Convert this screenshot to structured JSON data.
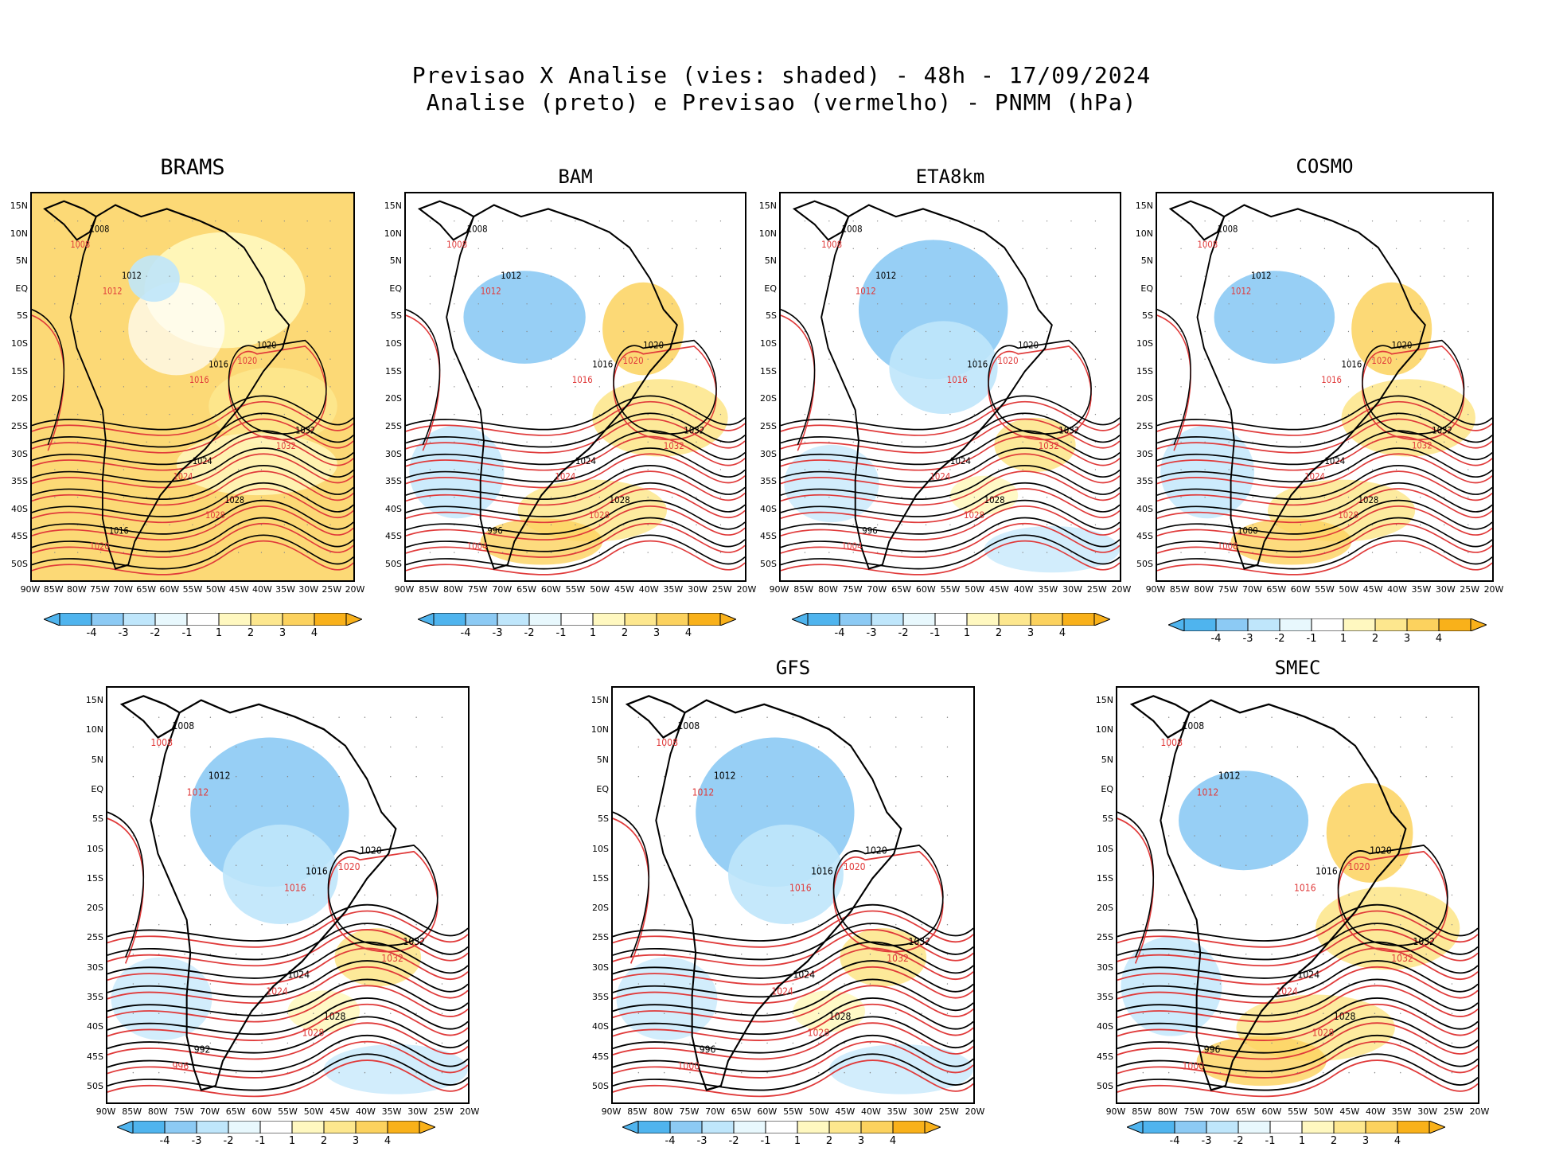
{
  "title_line1": "Previsao X Analise (vies: shaded) - 48h - 17/09/2024",
  "title_line2": "Analise (preto) e Previsao (vermelho) - PNMM (hPa)",
  "colors": {
    "neg4": "#4fb4ee",
    "neg3": "#8ccaf4",
    "neg2": "#bfe6fb",
    "neg1": "#e8f8fd",
    "pos1": "#fff8c0",
    "pos2": "#fde78e",
    "pos3": "#fcd25e",
    "pos4": "#f9b11a",
    "analysis": "#000000",
    "forecast": "#e03a3a",
    "coast": "#000000"
  },
  "lat_labels": [
    "15N",
    "10N",
    "5N",
    "EQ",
    "5S",
    "10S",
    "15S",
    "20S",
    "25S",
    "30S",
    "35S",
    "40S",
    "45S",
    "50S"
  ],
  "lon_labels": [
    "90W",
    "85W",
    "80W",
    "75W",
    "70W",
    "65W",
    "60W",
    "55W",
    "50W",
    "45W",
    "40W",
    "35W",
    "30W",
    "25W",
    "20W"
  ],
  "colorbar_labels": [
    "-4",
    "-3",
    "-2",
    "-1",
    "1",
    "2",
    "3",
    "4"
  ],
  "panels": [
    {
      "name": "BRAMS",
      "bias": "warm",
      "contour_labels": {
        "black": [
          "1008",
          "1012",
          "1016",
          "1020",
          "1024",
          "1028",
          "1032",
          "1016"
        ],
        "red": [
          "1008",
          "1012",
          "1016",
          "1020",
          "1024",
          "1028",
          "1032",
          "1020"
        ]
      }
    },
    {
      "name": "BAM",
      "bias": "mixed",
      "contour_labels": {
        "black": [
          "1008",
          "1012",
          "1016",
          "1020",
          "1024",
          "1028",
          "1032",
          "996"
        ],
        "red": [
          "1008",
          "1012",
          "1016",
          "1020",
          "1024",
          "1028",
          "1032",
          "1004"
        ]
      }
    },
    {
      "name": "ETA8km",
      "bias": "cold",
      "contour_labels": {
        "black": [
          "1008",
          "1012",
          "1016",
          "1020",
          "1024",
          "1028",
          "1032",
          "996"
        ],
        "red": [
          "1008",
          "1012",
          "1016",
          "1020",
          "1024",
          "1028",
          "1032",
          "1004"
        ]
      }
    },
    {
      "name": "COSMO",
      "bias": "mixed",
      "contour_labels": {
        "black": [
          "1008",
          "1012",
          "1016",
          "1020",
          "1024",
          "1028",
          "1032",
          "1000"
        ],
        "red": [
          "1008",
          "1012",
          "1016",
          "1020",
          "1024",
          "1028",
          "1032",
          "1008"
        ]
      }
    },
    {
      "name": "",
      "bias": "cold",
      "contour_labels": {
        "black": [
          "1008",
          "1012",
          "1016",
          "1020",
          "1024",
          "1028",
          "1032",
          "992"
        ],
        "red": [
          "1008",
          "1012",
          "1016",
          "1020",
          "1024",
          "1028",
          "1032",
          "996"
        ]
      }
    },
    {
      "name": "GFS",
      "bias": "cold",
      "contour_labels": {
        "black": [
          "1008",
          "1012",
          "1016",
          "1020",
          "1024",
          "1028",
          "1032",
          "996"
        ],
        "red": [
          "1008",
          "1012",
          "1016",
          "1020",
          "1024",
          "1028",
          "1032",
          "1000"
        ]
      }
    },
    {
      "name": "SMEC",
      "bias": "mixed",
      "contour_labels": {
        "black": [
          "1008",
          "1012",
          "1016",
          "1020",
          "1024",
          "1028",
          "1032",
          "996"
        ],
        "red": [
          "1008",
          "1012",
          "1016",
          "1020",
          "1024",
          "1028",
          "1032",
          "1000"
        ]
      }
    }
  ]
}
